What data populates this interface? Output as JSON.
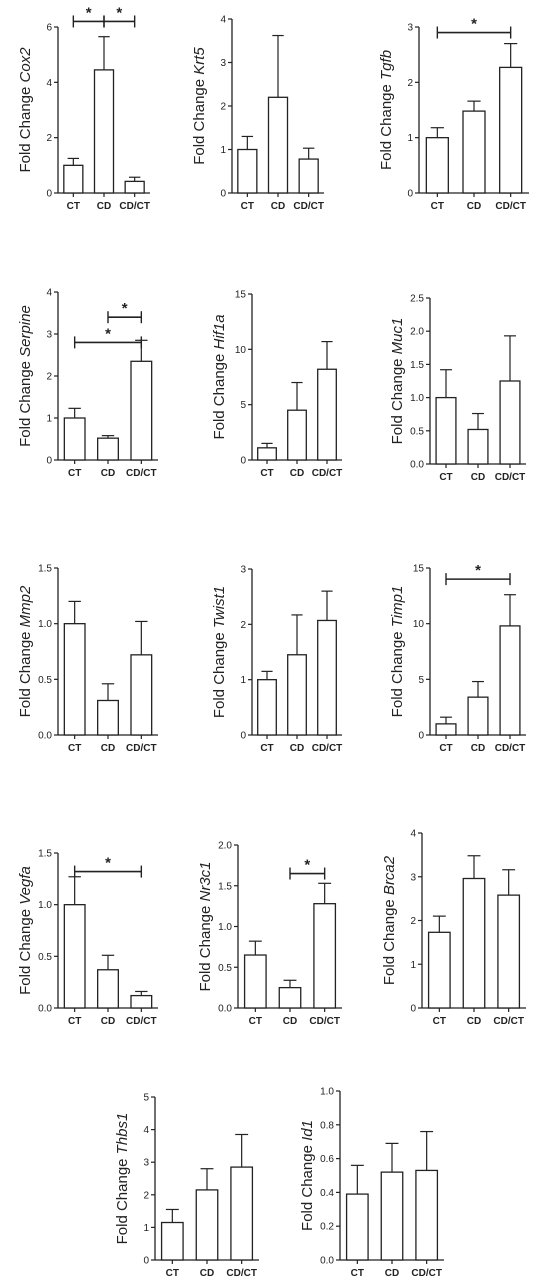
{
  "figure": {
    "ylabel_prefix": "Fold Change"
  },
  "colors": {
    "bar_fill": "#ffffff",
    "stroke": "#222222"
  },
  "chart_data": [
    {
      "type": "bar",
      "gene": "Cox2",
      "categories": [
        "CT",
        "CD",
        "CD/CT"
      ],
      "values": [
        1.0,
        4.45,
        0.42
      ],
      "errors": [
        0.25,
        1.2,
        0.15
      ],
      "ylim": [
        0,
        6
      ],
      "yticks": [
        0,
        2,
        4,
        6
      ],
      "tick_labels": [
        "0",
        "2",
        "4",
        "6"
      ],
      "significance": [
        {
          "from": 0,
          "to": 1,
          "y": 6.2,
          "label": "*"
        },
        {
          "from": 1,
          "to": 2,
          "y": 6.2,
          "label": "*"
        }
      ]
    },
    {
      "type": "bar",
      "gene": "Krt5",
      "categories": [
        "CT",
        "CD",
        "CD/CT"
      ],
      "values": [
        1.0,
        2.2,
        0.78
      ],
      "errors": [
        0.3,
        1.42,
        0.25
      ],
      "ylim": [
        0,
        4
      ],
      "yticks": [
        0,
        1,
        2,
        3,
        4
      ],
      "tick_labels": [
        "0",
        "1",
        "2",
        "3",
        "4"
      ],
      "significance": []
    },
    {
      "type": "bar",
      "gene": "Tgfb",
      "categories": [
        "CT",
        "CD",
        "CD/CT"
      ],
      "values": [
        1.0,
        1.48,
        2.27
      ],
      "errors": [
        0.18,
        0.18,
        0.43
      ],
      "ylim": [
        0,
        3
      ],
      "yticks": [
        0,
        1,
        2,
        3
      ],
      "tick_labels": [
        "0",
        "1",
        "2",
        "3"
      ],
      "significance": [
        {
          "from": 0,
          "to": 2,
          "y": 2.9,
          "label": "*"
        }
      ]
    },
    {
      "type": "bar",
      "gene": "Serpine",
      "categories": [
        "CT",
        "CD",
        "CD/CT"
      ],
      "values": [
        1.0,
        0.52,
        2.35
      ],
      "errors": [
        0.23,
        0.06,
        0.5
      ],
      "ylim": [
        0,
        4
      ],
      "yticks": [
        0,
        1,
        2,
        3,
        4
      ],
      "tick_labels": [
        "0",
        "1",
        "2",
        "3",
        "4"
      ],
      "significance": [
        {
          "from": 1,
          "to": 2,
          "y": 3.4,
          "label": "*"
        },
        {
          "from": 0,
          "to": 2,
          "y": 2.8,
          "label": "*"
        }
      ]
    },
    {
      "type": "bar",
      "gene": "Hif1a",
      "categories": [
        "CT",
        "CD",
        "CD/CT"
      ],
      "values": [
        1.1,
        4.5,
        8.2
      ],
      "errors": [
        0.4,
        2.5,
        2.5
      ],
      "ylim": [
        0,
        15
      ],
      "yticks": [
        0,
        5,
        10,
        15
      ],
      "tick_labels": [
        "0",
        "5",
        "10",
        "15"
      ],
      "significance": []
    },
    {
      "type": "bar",
      "gene": "Muc1",
      "categories": [
        "CT",
        "CD",
        "CD/CT"
      ],
      "values": [
        1.0,
        0.52,
        1.25
      ],
      "errors": [
        0.42,
        0.24,
        0.68
      ],
      "ylim": [
        0,
        2.5
      ],
      "yticks": [
        0,
        0.5,
        1.0,
        1.5,
        2.0,
        2.5
      ],
      "tick_labels": [
        "0.0",
        "0.5",
        "1.0",
        "1.5",
        "2.0",
        "2.5"
      ],
      "significance": []
    },
    {
      "type": "bar",
      "gene": "Mmp2",
      "categories": [
        "CT",
        "CD",
        "CD/CT"
      ],
      "values": [
        1.0,
        0.31,
        0.72
      ],
      "errors": [
        0.2,
        0.15,
        0.3
      ],
      "ylim": [
        0,
        1.5
      ],
      "yticks": [
        0,
        0.5,
        1.0,
        1.5
      ],
      "tick_labels": [
        "0.0",
        "0.5",
        "1.0",
        "1.5"
      ],
      "significance": []
    },
    {
      "type": "bar",
      "gene": "Twist1",
      "categories": [
        "CT",
        "CD",
        "CD/CT"
      ],
      "values": [
        1.0,
        1.45,
        2.07
      ],
      "errors": [
        0.15,
        0.72,
        0.53
      ],
      "ylim": [
        0,
        3
      ],
      "yticks": [
        0,
        1,
        2,
        3
      ],
      "tick_labels": [
        "0",
        "1",
        "2",
        "3"
      ],
      "significance": []
    },
    {
      "type": "bar",
      "gene": "Timp1",
      "categories": [
        "CT",
        "CD",
        "CD/CT"
      ],
      "values": [
        1.0,
        3.4,
        9.8
      ],
      "errors": [
        0.6,
        1.4,
        2.8
      ],
      "ylim": [
        0,
        15
      ],
      "yticks": [
        0,
        5,
        10,
        15
      ],
      "tick_labels": [
        "0",
        "5",
        "10",
        "15"
      ],
      "significance": [
        {
          "from": 0,
          "to": 2,
          "y": 14.0,
          "label": "*"
        }
      ]
    },
    {
      "type": "bar",
      "gene": "Vegfa",
      "categories": [
        "CT",
        "CD",
        "CD/CT"
      ],
      "values": [
        1.0,
        0.37,
        0.12
      ],
      "errors": [
        0.27,
        0.14,
        0.04
      ],
      "ylim": [
        0,
        1.5
      ],
      "yticks": [
        0,
        0.5,
        1.0,
        1.5
      ],
      "tick_labels": [
        "0.0",
        "0.5",
        "1.0",
        "1.5"
      ],
      "significance": [
        {
          "from": 0,
          "to": 2,
          "y": 1.32,
          "label": "*"
        }
      ]
    },
    {
      "type": "bar",
      "gene": "Nr3c1",
      "categories": [
        "CT",
        "CD",
        "CD/CT"
      ],
      "values": [
        0.65,
        0.25,
        1.28
      ],
      "errors": [
        0.17,
        0.09,
        0.25
      ],
      "ylim": [
        0,
        2.0
      ],
      "yticks": [
        0,
        0.5,
        1.0,
        1.5,
        2.0
      ],
      "tick_labels": [
        "0.0",
        "0.5",
        "1.0",
        "1.5",
        "2.0"
      ],
      "significance": [
        {
          "from": 1,
          "to": 2,
          "y": 1.65,
          "label": "*"
        }
      ]
    },
    {
      "type": "bar",
      "gene": "Brca2",
      "categories": [
        "CT",
        "CD",
        "CD/CT"
      ],
      "values": [
        1.73,
        2.96,
        2.58
      ],
      "errors": [
        0.37,
        0.52,
        0.58
      ],
      "ylim": [
        0,
        4
      ],
      "yticks": [
        0,
        1,
        2,
        3,
        4
      ],
      "tick_labels": [
        "0",
        "1",
        "2",
        "3",
        "4"
      ],
      "significance": []
    },
    {
      "type": "bar",
      "gene": "Thbs1",
      "categories": [
        "CT",
        "CD",
        "CD/CT"
      ],
      "values": [
        1.15,
        2.15,
        2.85
      ],
      "errors": [
        0.4,
        0.65,
        1.0
      ],
      "ylim": [
        0,
        5
      ],
      "yticks": [
        0,
        1,
        2,
        3,
        4,
        5
      ],
      "tick_labels": [
        "0",
        "1",
        "2",
        "3",
        "4",
        "5"
      ],
      "significance": []
    },
    {
      "type": "bar",
      "gene": "Id1",
      "categories": [
        "CT",
        "CD",
        "CD/CT"
      ],
      "values": [
        0.39,
        0.52,
        0.53
      ],
      "errors": [
        0.17,
        0.17,
        0.23
      ],
      "ylim": [
        0,
        1.0
      ],
      "yticks": [
        0,
        0.2,
        0.4,
        0.6,
        0.8,
        1.0
      ],
      "tick_labels": [
        "0.0",
        "0.2",
        "0.4",
        "0.6",
        "0.8",
        "1.0"
      ],
      "significance": []
    }
  ]
}
